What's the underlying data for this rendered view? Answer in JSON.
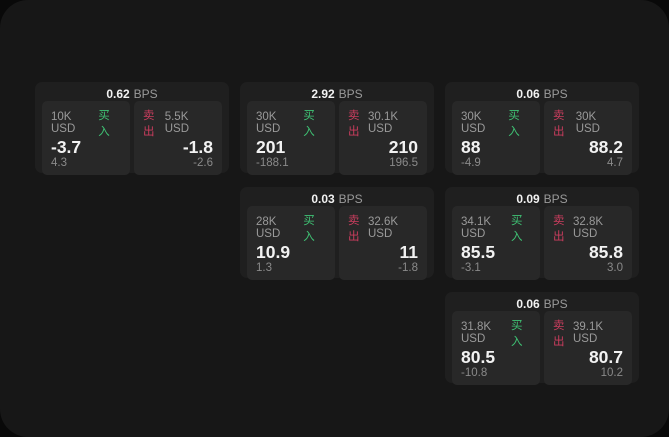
{
  "labels": {
    "bps_suffix": "BPS",
    "buy": "买入",
    "sell": "卖出"
  },
  "colors": {
    "buy_green": "#3fc274",
    "sell_red": "#cb3d5e",
    "window_bg": "#171717",
    "card_bg": "#1f1f1f",
    "panel_bg": "#282828"
  },
  "cards": [
    {
      "bps": "0.62",
      "col": 1,
      "row": 1,
      "buy": {
        "size": "10K USD",
        "value": "-3.7",
        "sub": "4.3"
      },
      "sell": {
        "size": "5.5K USD",
        "value": "-1.8",
        "sub": "-2.6"
      }
    },
    {
      "bps": "2.92",
      "col": 2,
      "row": 1,
      "buy": {
        "size": "30K USD",
        "value": "201",
        "sub": "-188.1"
      },
      "sell": {
        "size": "30.1K USD",
        "value": "210",
        "sub": "196.5"
      }
    },
    {
      "bps": "0.06",
      "col": 3,
      "row": 1,
      "buy": {
        "size": "30K USD",
        "value": "88",
        "sub": "-4.9"
      },
      "sell": {
        "size": "30K USD",
        "value": "88.2",
        "sub": "4.7"
      }
    },
    {
      "bps": "0.03",
      "col": 2,
      "row": 2,
      "buy": {
        "size": "28K USD",
        "value": "10.9",
        "sub": "1.3"
      },
      "sell": {
        "size": "32.6K USD",
        "value": "11",
        "sub": "-1.8"
      }
    },
    {
      "bps": "0.09",
      "col": 3,
      "row": 2,
      "buy": {
        "size": "34.1K USD",
        "value": "85.5",
        "sub": "-3.1"
      },
      "sell": {
        "size": "32.8K USD",
        "value": "85.8",
        "sub": "3.0"
      }
    },
    {
      "bps": "0.06",
      "col": 3,
      "row": 3,
      "buy": {
        "size": "31.8K USD",
        "value": "80.5",
        "sub": "-10.8"
      },
      "sell": {
        "size": "39.1K USD",
        "value": "80.7",
        "sub": "10.2"
      }
    }
  ]
}
